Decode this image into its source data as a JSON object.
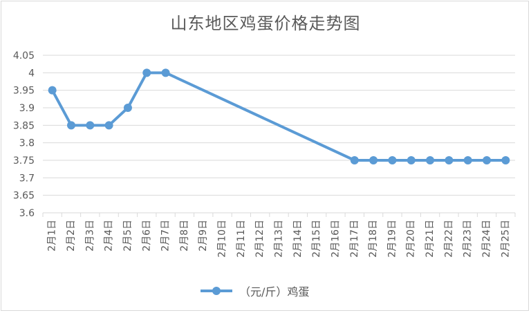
{
  "chart_data": {
    "type": "line",
    "title": "山东地区鸡蛋价格走势图",
    "xlabel": "",
    "ylabel": "",
    "ylim": [
      3.6,
      4.05
    ],
    "y_ticks": [
      "4.05",
      "4",
      "3.95",
      "3.9",
      "3.85",
      "3.8",
      "3.75",
      "3.7",
      "3.65",
      "3.6"
    ],
    "categories": [
      "2月1日",
      "2月2日",
      "2月3日",
      "2月4日",
      "2月5日",
      "2月6日",
      "2月7日",
      "2月8日",
      "2月9日",
      "2月10日",
      "2月11日",
      "2月12日",
      "2月13日",
      "2月14日",
      "2月15日",
      "2月16日",
      "2月17日",
      "2月18日",
      "2月19日",
      "2月20日",
      "2月21日",
      "2月22日",
      "2月23日",
      "2月24日",
      "2月25日"
    ],
    "series": [
      {
        "name": "（元/斤）鸡蛋",
        "color": "#5b9bd5",
        "values": [
          3.95,
          3.85,
          3.85,
          3.85,
          3.9,
          4.0,
          4.0,
          null,
          null,
          null,
          null,
          null,
          null,
          null,
          null,
          null,
          3.75,
          3.75,
          3.75,
          3.75,
          3.75,
          3.75,
          3.75,
          3.75,
          3.75
        ]
      }
    ],
    "grid": true,
    "legend_position": "bottom"
  }
}
